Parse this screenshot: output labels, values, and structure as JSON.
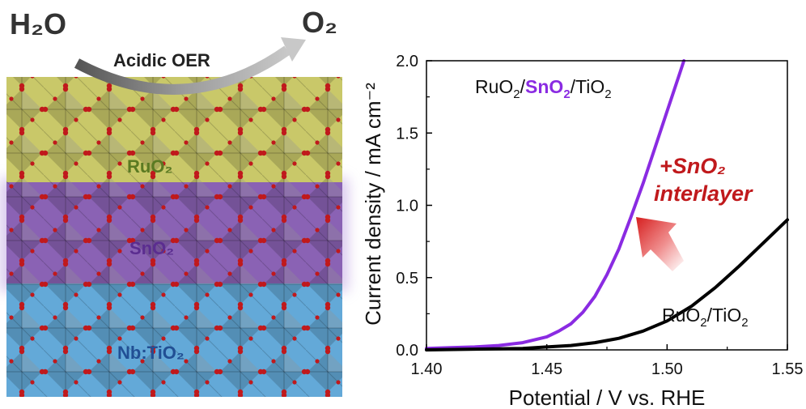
{
  "schematic": {
    "reactant": "H₂O",
    "product": "O₂",
    "process_label": "Acidic OER",
    "layers": [
      {
        "label": "RuO₂",
        "color": "#c9c869",
        "label_color": "#5a7a22"
      },
      {
        "label": "SnO₂",
        "color": "#8a62b4",
        "label_color": "#5b2d90"
      },
      {
        "label": "Nb:TiO₂",
        "color": "#63a9d8",
        "label_color": "#214f94"
      }
    ],
    "atom_color": "#c0191c"
  },
  "chart_data": {
    "type": "line",
    "xlabel": "Potential / V vs. RHE",
    "ylabel": "Current density / mA cm⁻²",
    "xlim": [
      1.4,
      1.55
    ],
    "ylim": [
      0.0,
      2.0
    ],
    "xticks": [
      "1.40",
      "1.45",
      "1.50",
      "1.55"
    ],
    "yticks": [
      "0.0",
      "0.5",
      "1.0",
      "1.5",
      "2.0"
    ],
    "grid": false,
    "series": [
      {
        "name": "RuO₂/SnO₂/TiO₂",
        "color": "#8a2be2",
        "x": [
          1.4,
          1.41,
          1.42,
          1.43,
          1.44,
          1.45,
          1.455,
          1.46,
          1.465,
          1.47,
          1.475,
          1.48,
          1.485,
          1.49,
          1.495,
          1.5,
          1.505,
          1.507
        ],
        "y": [
          0.01,
          0.015,
          0.02,
          0.03,
          0.05,
          0.09,
          0.13,
          0.18,
          0.26,
          0.37,
          0.52,
          0.7,
          0.92,
          1.15,
          1.4,
          1.65,
          1.9,
          2.0
        ]
      },
      {
        "name": "RuO₂/TiO₂",
        "color": "#000000",
        "x": [
          1.4,
          1.42,
          1.44,
          1.45,
          1.46,
          1.47,
          1.48,
          1.49,
          1.5,
          1.51,
          1.52,
          1.53,
          1.54,
          1.55
        ],
        "y": [
          0.0,
          0.005,
          0.01,
          0.02,
          0.03,
          0.05,
          0.08,
          0.13,
          0.2,
          0.3,
          0.43,
          0.58,
          0.74,
          0.9
        ]
      }
    ],
    "annotation": {
      "line1": "+SnO₂",
      "line2": "interlayer",
      "color": "#c0191c"
    }
  }
}
